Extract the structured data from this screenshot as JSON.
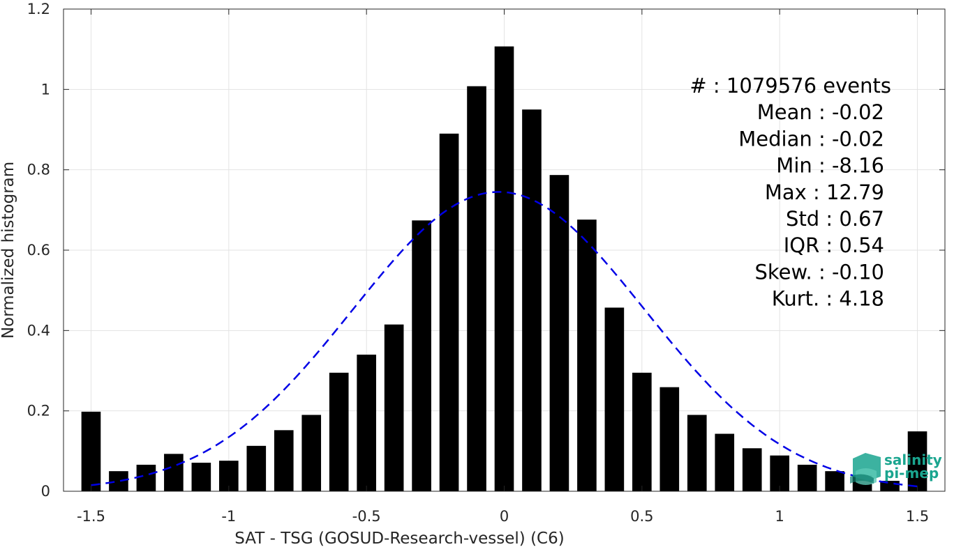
{
  "chart_data": {
    "type": "bar",
    "xlabel": "SAT - TSG (GOSUD-Research-vessel) (C6)",
    "ylabel": "Normalized histogram",
    "xlim": [
      -1.6,
      1.6
    ],
    "ylim": [
      0,
      1.2
    ],
    "xticks": [
      -1.5,
      -1,
      -0.5,
      0,
      0.5,
      1,
      1.5
    ],
    "xtick_labels": [
      "-1.5",
      "-1",
      "-0.5",
      "0",
      "0.5",
      "1",
      "1.5"
    ],
    "yticks": [
      0,
      0.2,
      0.4,
      0.6,
      0.8,
      1,
      1.2
    ],
    "ytick_labels": [
      "0",
      "0.2",
      "0.4",
      "0.6",
      "0.8",
      "1",
      "1.2"
    ],
    "grid": true,
    "bar_width": 0.07,
    "bar_color": "#000000",
    "bars": {
      "x": [
        -1.5,
        -1.4,
        -1.3,
        -1.2,
        -1.1,
        -1.0,
        -0.9,
        -0.8,
        -0.7,
        -0.6,
        -0.5,
        -0.4,
        -0.3,
        -0.2,
        -0.1,
        0.0,
        0.1,
        0.2,
        0.3,
        0.4,
        0.5,
        0.6,
        0.7,
        0.8,
        0.9,
        1.0,
        1.1,
        1.2,
        1.3,
        1.4,
        1.5
      ],
      "values": [
        0.198,
        0.05,
        0.066,
        0.093,
        0.071,
        0.076,
        0.113,
        0.152,
        0.19,
        0.295,
        0.34,
        0.415,
        0.674,
        0.89,
        1.008,
        1.107,
        0.95,
        0.787,
        0.676,
        0.457,
        0.295,
        0.259,
        0.19,
        0.143,
        0.107,
        0.089,
        0.066,
        0.05,
        0.04,
        0.026,
        0.149
      ]
    },
    "fit_curve": {
      "type": "normal",
      "mean": -0.02,
      "std": 0.53,
      "peak": 0.745,
      "x_range": [
        -1.5,
        1.5
      ],
      "color": "#0000e6",
      "style": "dashed"
    },
    "stats": [
      "#  : 1079576 events",
      "Mean : -0.02",
      "Median : -0.02",
      "Min : -8.16",
      "Max : 12.79",
      "Std : 0.67",
      "IQR : 0.54",
      "Skew. : -0.10",
      "Kurt. : 4.18"
    ]
  },
  "logo": {
    "line1": "salinity",
    "line2": "pi-mep",
    "color": "#1aa58f"
  }
}
